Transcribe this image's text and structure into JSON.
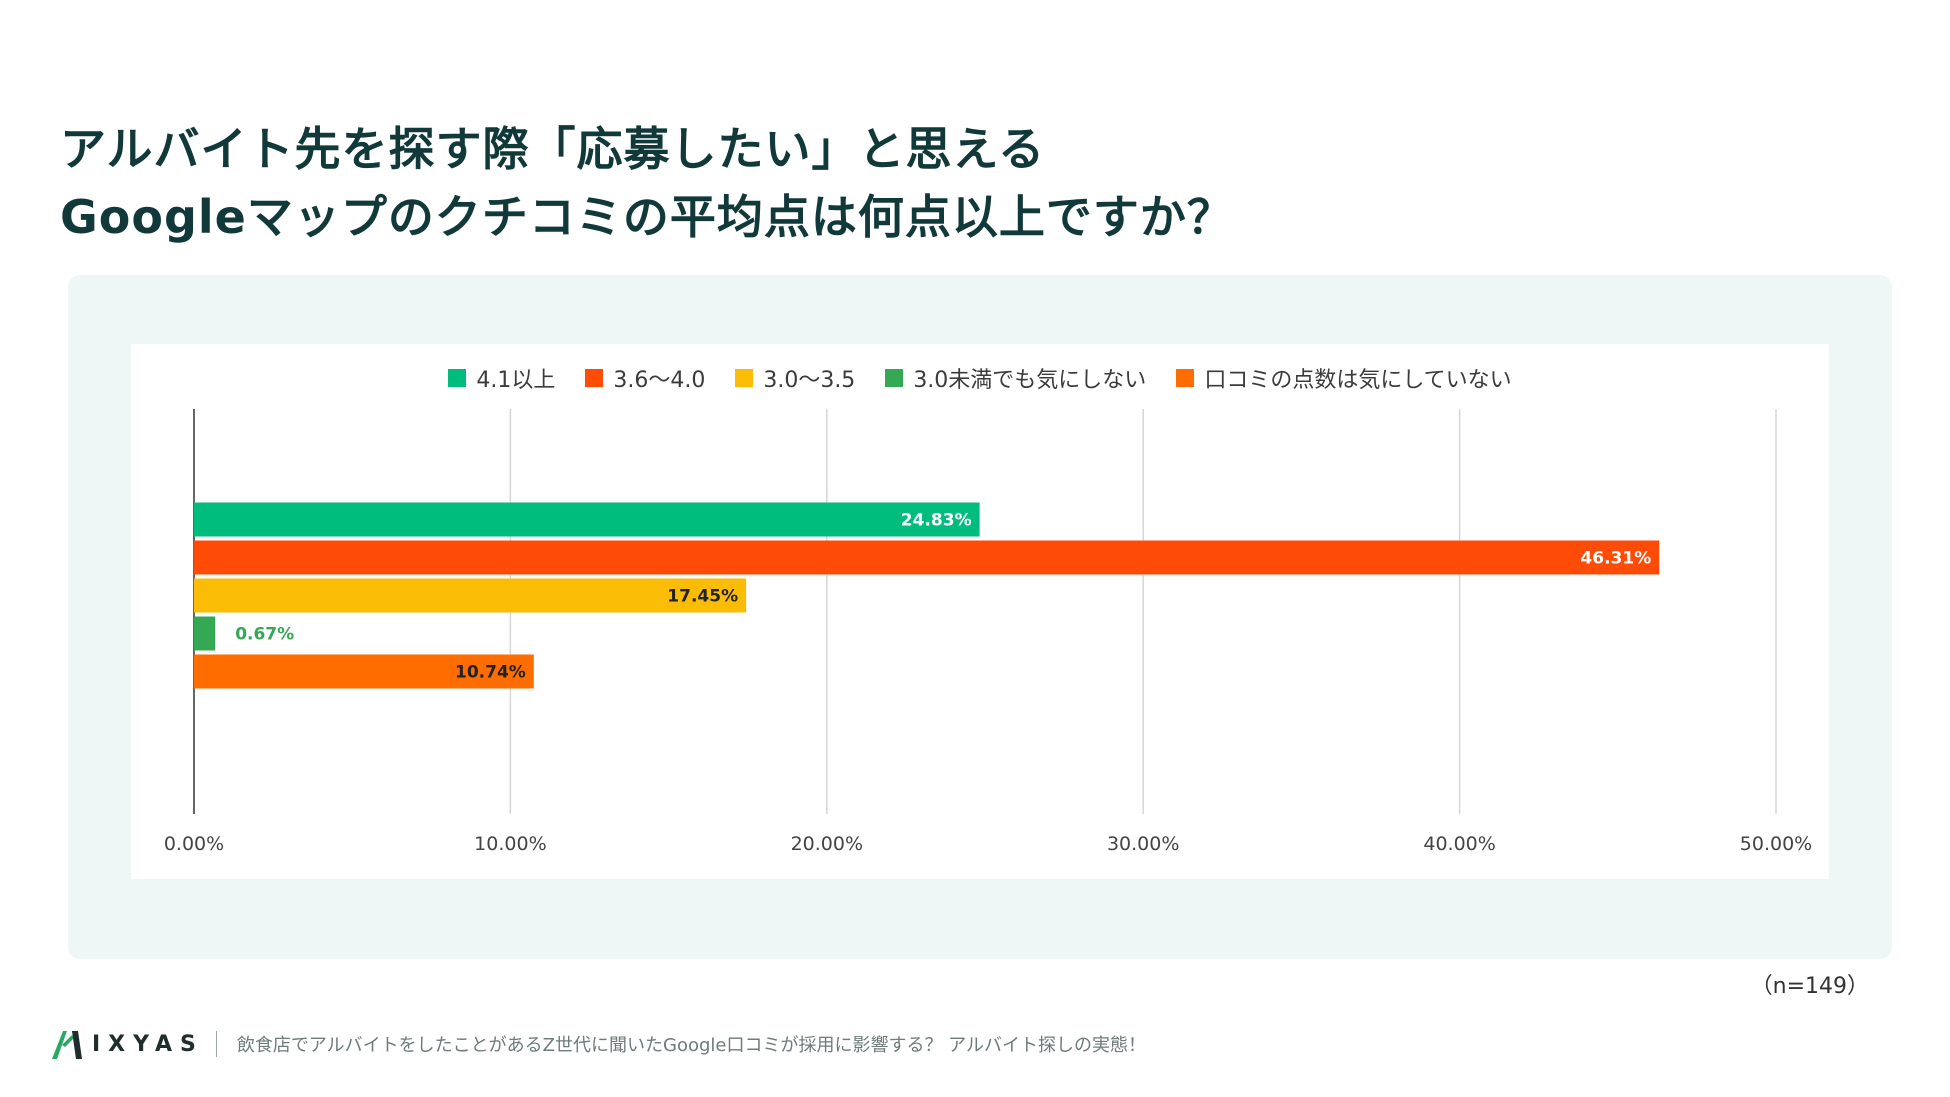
{
  "title": {
    "line1": "アルバイト先を探す際「応募したい」と思える",
    "line2": "Googleマップのクチコミの平均点は何点以上ですか？"
  },
  "note": "（n=149）",
  "footer": {
    "brand": "IXYAS",
    "caption": "飲食店でアルバイトをしたことがあるZ世代に聞いたGoogle口コミが採用に影響する？ アルバイト探しの実態！"
  },
  "chart_data": {
    "type": "bar",
    "orientation": "horizontal",
    "title": "",
    "xlabel": "",
    "ylabel": "",
    "xlim": [
      0,
      50
    ],
    "ticks": [
      "0.00%",
      "10.00%",
      "20.00%",
      "30.00%",
      "40.00%",
      "50.00%"
    ],
    "tick_values": [
      0,
      10,
      20,
      30,
      40,
      50
    ],
    "grid": true,
    "legend_position": "top-center",
    "series": [
      {
        "name": "4.1以上",
        "value": 24.83,
        "label": "24.83%",
        "color": "#00bd7e",
        "label_color": "#ffffff",
        "label_position": "inside"
      },
      {
        "name": "3.6〜4.0",
        "value": 46.31,
        "label": "46.31%",
        "color": "#ff4b08",
        "label_color": "#ffffff",
        "label_position": "inside"
      },
      {
        "name": "3.0〜3.5",
        "value": 17.45,
        "label": "17.45%",
        "color": "#fbbc05",
        "label_color": "#222222",
        "label_position": "inside"
      },
      {
        "name": "3.0未満でも気にしない",
        "value": 0.67,
        "label": "0.67%",
        "color": "#34a853",
        "label_color": "#34a853",
        "label_position": "outside"
      },
      {
        "name": "口コミの点数は気にしていない",
        "value": 10.74,
        "label": "10.74%",
        "color": "#ff6d01",
        "label_color": "#222222",
        "label_position": "inside"
      }
    ]
  }
}
